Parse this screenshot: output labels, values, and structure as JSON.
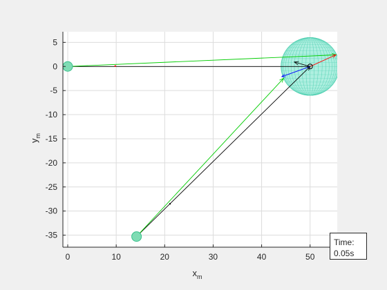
{
  "chart_data": {
    "type": "line",
    "title": "",
    "xlabel": "x",
    "xlabel_sub": "m",
    "ylabel": "y",
    "ylabel_sub": "m",
    "xlim": [
      -1,
      55.6
    ],
    "ylim": [
      -37.5,
      7.2
    ],
    "xticks": [
      0,
      10,
      20,
      30,
      40,
      50
    ],
    "yticks": [
      5,
      0,
      -5,
      -10,
      -15,
      -20,
      -25,
      -30,
      -35
    ],
    "xtick_labels": [
      "0",
      "10",
      "20",
      "30",
      "40",
      "50"
    ],
    "ytick_labels": [
      "5",
      "0",
      "-5",
      "-10",
      "-15",
      "-20",
      "-25",
      "-30",
      "-35"
    ],
    "grid": true,
    "colors": {
      "black": "#000000",
      "green": "#00cc00",
      "red": "#ff0000",
      "blue": "#0000ff",
      "pursuer_fill": "#7fdcb4",
      "pursuer_edge": "#38c08c",
      "sphere_fill": "#a6eedd",
      "sphere_mesh": "#4ecfb0",
      "grid": "#dcdcdc"
    },
    "series": [
      {
        "name": "pursuer-1-to-target",
        "color": "black",
        "x": [
          0,
          50
        ],
        "y": [
          0,
          0
        ]
      },
      {
        "name": "pursuer-1-lead",
        "color": "green",
        "x": [
          0,
          55.3
        ],
        "y": [
          0,
          2.4
        ]
      },
      {
        "name": "pursuer-2-to-target",
        "color": "black",
        "x": [
          14.2,
          50
        ],
        "y": [
          -35.3,
          0
        ]
      },
      {
        "name": "pursuer-2-lead",
        "color": "green",
        "x": [
          14.2,
          44.5
        ],
        "y": [
          -35.3,
          -2.5
        ]
      },
      {
        "name": "target-velocity",
        "color": "red",
        "x": [
          50,
          55.3
        ],
        "y": [
          0,
          2.4
        ]
      },
      {
        "name": "target-blue-vector",
        "color": "blue",
        "x": [
          50,
          44.2
        ],
        "y": [
          0,
          -2.1
        ]
      },
      {
        "name": "target-black-vector",
        "color": "black",
        "x": [
          50,
          46.8
        ],
        "y": [
          0,
          0.9
        ]
      }
    ],
    "pursuers": [
      {
        "name": "pursuer-1",
        "x": 0,
        "y": 0,
        "r": 1.0
      },
      {
        "name": "pursuer-2",
        "x": 14.2,
        "y": -35.3,
        "r": 1.0
      }
    ],
    "target": {
      "x": 50,
      "y": 0,
      "marker_r": 0.5,
      "sphere_r": 6
    },
    "small_markers": [
      {
        "name": "marker-red",
        "x": 9.8,
        "y": 0.1,
        "color": "red"
      },
      {
        "name": "marker-black",
        "x": 21.1,
        "y": -28.5,
        "color": "black"
      }
    ]
  },
  "time_box": {
    "label": "Time:",
    "value": "0.05s"
  }
}
